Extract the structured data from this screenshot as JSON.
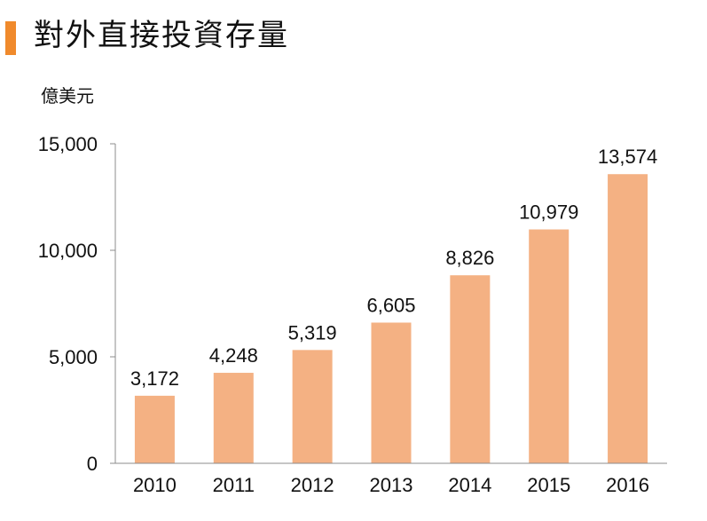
{
  "header": {
    "title": "對外直接投資存量",
    "unit": "億美元"
  },
  "colors": {
    "accent": "#f08a2c",
    "bar": "#f4b183",
    "axis": "#8c8c8c"
  },
  "chart_data": {
    "type": "bar",
    "title": "對外直接投資存量",
    "ylabel": "億美元",
    "xlabel": "",
    "categories": [
      "2010",
      "2011",
      "2012",
      "2013",
      "2014",
      "2015",
      "2016"
    ],
    "values": [
      3172,
      4248,
      5319,
      6605,
      8826,
      10979,
      13574
    ],
    "data_labels": [
      "3,172",
      "4,248",
      "5,319",
      "6,605",
      "8,826",
      "10,979",
      "13,574"
    ],
    "ylim": [
      0,
      15000
    ],
    "yticks": [
      0,
      5000,
      10000,
      15000
    ],
    "ytick_labels": [
      "0",
      "5,000",
      "10,000",
      "15,000"
    ],
    "grid": false,
    "legend": "none"
  }
}
